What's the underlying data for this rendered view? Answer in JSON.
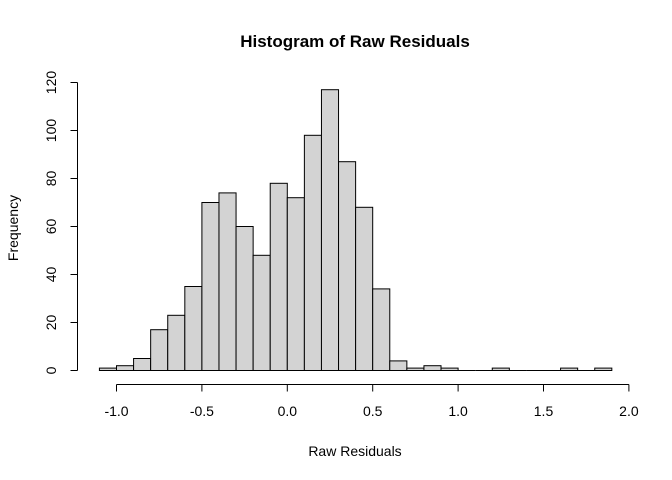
{
  "chart_data": {
    "type": "bar",
    "title": "Histogram of Raw Residuals",
    "xlabel": "Raw Residuals",
    "ylabel": "Frequency",
    "xlim": [
      -1.1,
      1.9
    ],
    "ylim": [
      0,
      120
    ],
    "bin_width": 0.1,
    "x_ticks": [
      -1.0,
      -0.5,
      0.0,
      0.5,
      1.0,
      1.5,
      2.0
    ],
    "x_tick_labels": [
      "-1.0",
      "-0.5",
      "0.0",
      "0.5",
      "1.0",
      "1.5",
      "2.0"
    ],
    "y_ticks": [
      0,
      20,
      40,
      60,
      80,
      100,
      120
    ],
    "y_tick_labels": [
      "0",
      "20",
      "40",
      "60",
      "80",
      "100",
      "120"
    ],
    "bins": [
      {
        "start": -1.1,
        "end": -1.0,
        "count": 1
      },
      {
        "start": -1.0,
        "end": -0.9,
        "count": 2
      },
      {
        "start": -0.9,
        "end": -0.8,
        "count": 5
      },
      {
        "start": -0.8,
        "end": -0.7,
        "count": 17
      },
      {
        "start": -0.7,
        "end": -0.6,
        "count": 23
      },
      {
        "start": -0.6,
        "end": -0.5,
        "count": 35
      },
      {
        "start": -0.5,
        "end": -0.4,
        "count": 70
      },
      {
        "start": -0.4,
        "end": -0.3,
        "count": 74
      },
      {
        "start": -0.3,
        "end": -0.2,
        "count": 60
      },
      {
        "start": -0.2,
        "end": -0.1,
        "count": 48
      },
      {
        "start": -0.1,
        "end": 0.0,
        "count": 78
      },
      {
        "start": 0.0,
        "end": 0.1,
        "count": 72
      },
      {
        "start": 0.1,
        "end": 0.2,
        "count": 98
      },
      {
        "start": 0.2,
        "end": 0.3,
        "count": 117
      },
      {
        "start": 0.3,
        "end": 0.4,
        "count": 87
      },
      {
        "start": 0.4,
        "end": 0.5,
        "count": 68
      },
      {
        "start": 0.5,
        "end": 0.6,
        "count": 34
      },
      {
        "start": 0.6,
        "end": 0.7,
        "count": 4
      },
      {
        "start": 0.7,
        "end": 0.8,
        "count": 1
      },
      {
        "start": 0.8,
        "end": 0.9,
        "count": 2
      },
      {
        "start": 0.9,
        "end": 1.0,
        "count": 1
      },
      {
        "start": 1.0,
        "end": 1.1,
        "count": 0
      },
      {
        "start": 1.1,
        "end": 1.2,
        "count": 0
      },
      {
        "start": 1.2,
        "end": 1.3,
        "count": 1
      },
      {
        "start": 1.3,
        "end": 1.4,
        "count": 0
      },
      {
        "start": 1.4,
        "end": 1.5,
        "count": 0
      },
      {
        "start": 1.5,
        "end": 1.6,
        "count": 0
      },
      {
        "start": 1.6,
        "end": 1.7,
        "count": 1
      },
      {
        "start": 1.7,
        "end": 1.8,
        "count": 0
      },
      {
        "start": 1.8,
        "end": 1.9,
        "count": 1
      }
    ],
    "grid": false,
    "bar_fill": "#d3d3d3",
    "bar_stroke": "#000000"
  }
}
